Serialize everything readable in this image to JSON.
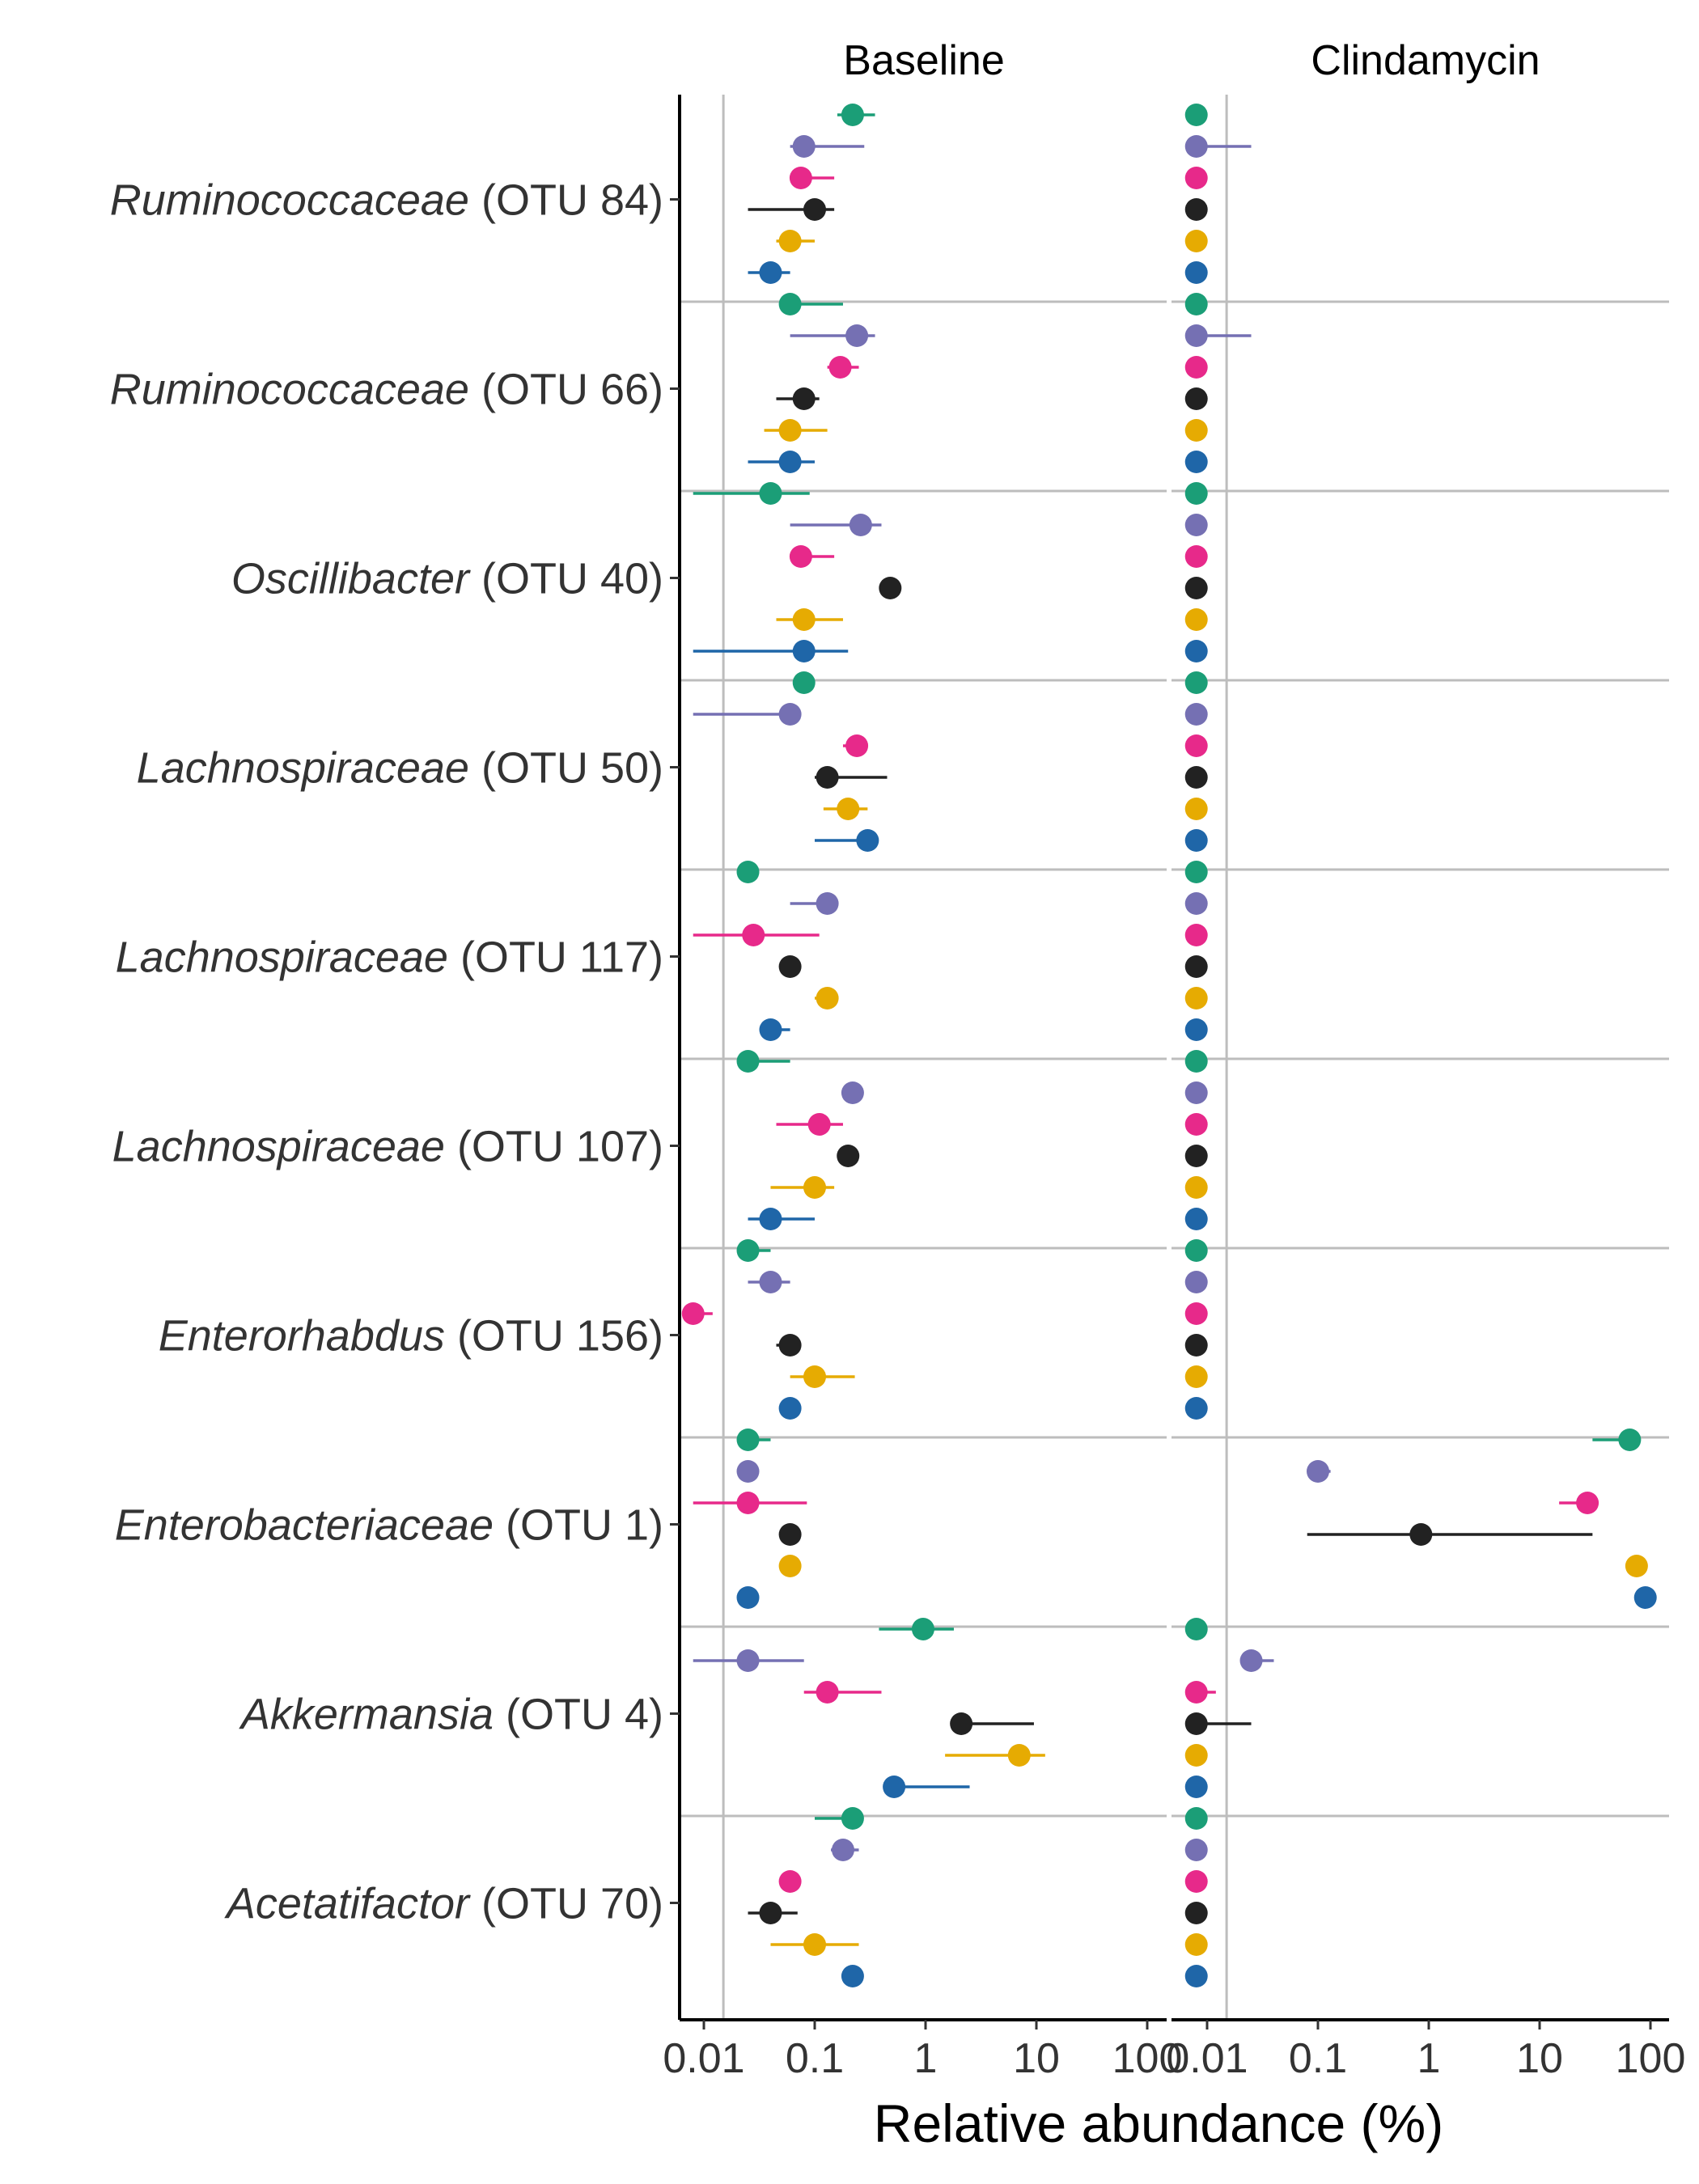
{
  "chart_data": {
    "type": "scatter",
    "xlabel": "Relative abundance (%)",
    "x_scale": "log10",
    "xlim": [
      0.006,
      150
    ],
    "x_ticks": [
      0.01,
      0.1,
      1,
      10,
      100
    ],
    "x_tick_labels": [
      "0.01",
      "0.1",
      "1",
      "10",
      "100"
    ],
    "reference_line_x": 0.015,
    "colors": [
      "#1b9e77",
      "#7570b3",
      "#e7298a",
      "#222222",
      "#e6ab02",
      "#1f66a8"
    ],
    "facets": [
      "Baseline",
      "Clindamycin"
    ],
    "rows": [
      {
        "taxon": "Ruminococcaceae",
        "otu": "(OTU 84)",
        "baseline": [
          [
            0.22,
            0.16,
            0.35
          ],
          [
            0.08,
            0.06,
            0.28
          ],
          [
            0.075,
            0.06,
            0.15
          ],
          [
            0.1,
            0.025,
            0.15
          ],
          [
            0.06,
            0.045,
            0.1
          ],
          [
            0.04,
            0.025,
            0.06
          ]
        ],
        "clindamycin": [
          [
            0.008,
            null,
            null
          ],
          [
            0.008,
            null,
            0.025
          ],
          [
            0.008,
            null,
            null
          ],
          [
            0.008,
            null,
            null
          ],
          [
            0.008,
            null,
            null
          ],
          [
            0.008,
            null,
            null
          ]
        ]
      },
      {
        "taxon": "Ruminococcaceae",
        "otu": "(OTU 66)",
        "baseline": [
          [
            0.06,
            0.06,
            0.18
          ],
          [
            0.24,
            0.06,
            0.35
          ],
          [
            0.17,
            0.13,
            0.25
          ],
          [
            0.08,
            0.045,
            0.11
          ],
          [
            0.06,
            0.035,
            0.13
          ],
          [
            0.06,
            0.025,
            0.1
          ]
        ],
        "clindamycin": [
          [
            0.008,
            null,
            null
          ],
          [
            0.008,
            null,
            0.025
          ],
          [
            0.008,
            null,
            null
          ],
          [
            0.008,
            null,
            null
          ],
          [
            0.008,
            null,
            null
          ],
          [
            0.008,
            null,
            null
          ]
        ]
      },
      {
        "taxon": "Oscillibacter",
        "otu": "(OTU 40)",
        "baseline": [
          [
            0.04,
            0.008,
            0.09
          ],
          [
            0.26,
            0.06,
            0.4
          ],
          [
            0.075,
            0.06,
            0.15
          ],
          [
            0.48,
            null,
            null
          ],
          [
            0.08,
            0.045,
            0.18
          ],
          [
            0.08,
            0.008,
            0.2
          ]
        ],
        "clindamycin": [
          [
            0.008,
            null,
            null
          ],
          [
            0.008,
            null,
            null
          ],
          [
            0.008,
            null,
            null
          ],
          [
            0.008,
            null,
            null
          ],
          [
            0.008,
            null,
            null
          ],
          [
            0.008,
            null,
            null
          ]
        ]
      },
      {
        "taxon": "Lachnospiraceae",
        "otu": "(OTU 50)",
        "baseline": [
          [
            0.08,
            null,
            null
          ],
          [
            0.06,
            0.008,
            0.06
          ],
          [
            0.24,
            0.18,
            0.28
          ],
          [
            0.13,
            0.1,
            0.45
          ],
          [
            0.2,
            0.12,
            0.3
          ],
          [
            0.3,
            0.1,
            0.3
          ]
        ],
        "clindamycin": [
          [
            0.008,
            null,
            null
          ],
          [
            0.008,
            null,
            null
          ],
          [
            0.008,
            null,
            null
          ],
          [
            0.008,
            null,
            null
          ],
          [
            0.008,
            null,
            null
          ],
          [
            0.008,
            null,
            null
          ]
        ]
      },
      {
        "taxon": "Lachnospiraceae",
        "otu": "(OTU 117)",
        "baseline": [
          [
            0.025,
            null,
            null
          ],
          [
            0.13,
            0.06,
            0.15
          ],
          [
            0.028,
            0.008,
            0.11
          ],
          [
            0.06,
            0.05,
            0.07
          ],
          [
            0.13,
            0.1,
            0.15
          ],
          [
            0.04,
            0.04,
            0.06
          ]
        ],
        "clindamycin": [
          [
            0.008,
            null,
            null
          ],
          [
            0.008,
            null,
            null
          ],
          [
            0.008,
            null,
            null
          ],
          [
            0.008,
            null,
            null
          ],
          [
            0.008,
            null,
            null
          ],
          [
            0.008,
            null,
            null
          ]
        ]
      },
      {
        "taxon": "Lachnospiraceae",
        "otu": "(OTU 107)",
        "baseline": [
          [
            0.025,
            0.025,
            0.06
          ],
          [
            0.22,
            null,
            null
          ],
          [
            0.11,
            0.045,
            0.18
          ],
          [
            0.2,
            0.17,
            0.25
          ],
          [
            0.1,
            0.04,
            0.15
          ],
          [
            0.04,
            0.025,
            0.1
          ]
        ],
        "clindamycin": [
          [
            0.008,
            null,
            null
          ],
          [
            0.008,
            null,
            null
          ],
          [
            0.008,
            null,
            null
          ],
          [
            0.008,
            null,
            null
          ],
          [
            0.008,
            null,
            null
          ],
          [
            0.008,
            null,
            null
          ]
        ]
      },
      {
        "taxon": "Enterorhabdus",
        "otu": "(OTU 156)",
        "baseline": [
          [
            0.025,
            0.025,
            0.04
          ],
          [
            0.04,
            0.025,
            0.06
          ],
          [
            0.008,
            0.008,
            0.012
          ],
          [
            0.06,
            0.045,
            0.07
          ],
          [
            0.1,
            0.06,
            0.23
          ],
          [
            0.06,
            0.05,
            0.07
          ]
        ],
        "clindamycin": [
          [
            0.008,
            null,
            null
          ],
          [
            0.008,
            null,
            null
          ],
          [
            0.008,
            null,
            null
          ],
          [
            0.008,
            null,
            null
          ],
          [
            0.008,
            null,
            null
          ],
          [
            0.008,
            null,
            null
          ]
        ]
      },
      {
        "taxon": "Enterobacteriaceae",
        "otu": "(OTU 1)",
        "baseline": [
          [
            0.025,
            0.025,
            0.04
          ],
          [
            0.025,
            null,
            null
          ],
          [
            0.025,
            0.008,
            0.085
          ],
          [
            0.06,
            null,
            null
          ],
          [
            0.06,
            0.05,
            0.07
          ],
          [
            0.025,
            null,
            null
          ]
        ],
        "clindamycin": [
          [
            65,
            30,
            65
          ],
          [
            0.1,
            0.1,
            0.13
          ],
          [
            27,
            15,
            27
          ],
          [
            0.85,
            0.08,
            30
          ],
          [
            75,
            null,
            null
          ],
          [
            90,
            null,
            null
          ]
        ]
      },
      {
        "taxon": "Akkermansia",
        "otu": "(OTU 4)",
        "baseline": [
          [
            0.95,
            0.38,
            1.8
          ],
          [
            0.025,
            0.008,
            0.08
          ],
          [
            0.13,
            0.08,
            0.4
          ],
          [
            2.1,
            2.1,
            9.5
          ],
          [
            7,
            1.5,
            12
          ],
          [
            0.52,
            0.52,
            2.5
          ]
        ],
        "clindamycin": [
          [
            0.008,
            null,
            null
          ],
          [
            0.025,
            0.025,
            0.04
          ],
          [
            0.008,
            0.008,
            0.012
          ],
          [
            0.008,
            0.008,
            0.025
          ],
          [
            0.008,
            null,
            null
          ],
          [
            0.008,
            null,
            null
          ]
        ]
      },
      {
        "taxon": "Acetatifactor",
        "otu": "(OTU 70)",
        "baseline": [
          [
            0.22,
            0.1,
            0.22
          ],
          [
            0.18,
            0.14,
            0.25
          ],
          [
            0.06,
            0.05,
            0.07
          ],
          [
            0.04,
            0.025,
            0.07
          ],
          [
            0.1,
            0.04,
            0.25
          ],
          [
            0.22,
            null,
            null
          ]
        ],
        "clindamycin": [
          [
            0.008,
            null,
            null
          ],
          [
            0.008,
            null,
            null
          ],
          [
            0.008,
            null,
            null
          ],
          [
            0.008,
            null,
            null
          ],
          [
            0.008,
            null,
            null
          ],
          [
            0.008,
            null,
            null
          ]
        ]
      }
    ]
  }
}
